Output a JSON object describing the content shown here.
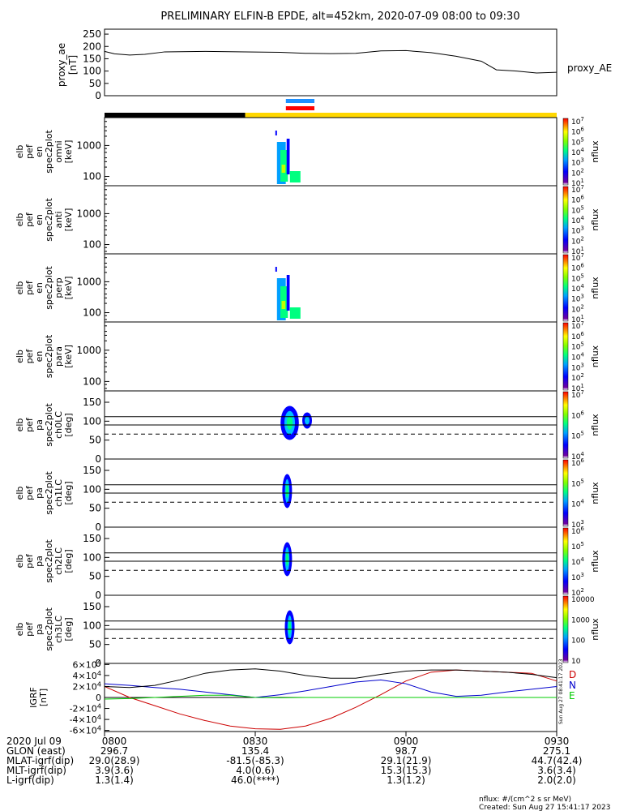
{
  "title": "PRELIMINARY ELFIN-B EPDE, alt=452km, 2020-07-09 08:00 to 09:30",
  "footer": {
    "units": "nflux: #/(cm^2 s sr MeV)",
    "created": "Created: Sun Aug 27 15:41:17 2023",
    "side_stamp": "Sun Aug 27 08:41:17 2023"
  },
  "chart_data": [
    {
      "type": "line",
      "title": "proxy_ae",
      "ylabel": "proxy_ae\n[nT]",
      "legend": "proxy_AE",
      "ylim": [
        0,
        270
      ],
      "yticks": [
        0,
        50,
        100,
        150,
        200,
        250
      ],
      "xlim": [
        0,
        90
      ],
      "x": [
        0,
        2,
        5,
        8,
        12,
        20,
        28,
        35,
        40,
        45,
        50,
        55,
        60,
        65,
        70,
        75,
        78,
        82,
        86,
        90
      ],
      "series": [
        {
          "values": [
            180,
            170,
            165,
            168,
            178,
            180,
            178,
            176,
            172,
            171,
            172,
            182,
            183,
            175,
            160,
            140,
            105,
            100,
            92,
            95
          ],
          "color": "#000000"
        }
      ]
    },
    {
      "type": "heatmap",
      "title": "elb_pef_en_spec2plot_omni",
      "ylabel": "elb pef en spec2plot omni [keV]",
      "yscale": "log",
      "yticks": [
        100,
        1000
      ],
      "colorbar": {
        "label": "nflux",
        "ticks": [
          "10^1",
          "10^2",
          "10^3",
          "10^4",
          "10^5",
          "10^6",
          "10^7"
        ]
      },
      "activity_minutes": [
        34,
        39
      ]
    },
    {
      "type": "heatmap",
      "title": "elb_pef_en_spec2plot_anti",
      "ylabel": "elb pef en spec2plot anti [keV]",
      "yscale": "log",
      "yticks": [
        100,
        1000
      ],
      "colorbar": {
        "label": "nflux",
        "ticks": [
          "10^1",
          "10^2",
          "10^3",
          "10^4",
          "10^5",
          "10^6",
          "10^7"
        ]
      },
      "activity_minutes": []
    },
    {
      "type": "heatmap",
      "title": "elb_pef_en_spec2plot_perp",
      "ylabel": "elb pef en spec2plot perp [keV]",
      "yscale": "log",
      "yticks": [
        100,
        1000
      ],
      "colorbar": {
        "label": "nflux",
        "ticks": [
          "10^1",
          "10^2",
          "10^3",
          "10^4",
          "10^5",
          "10^6",
          "10^7"
        ]
      },
      "activity_minutes": [
        34,
        39
      ]
    },
    {
      "type": "heatmap",
      "title": "elb_pef_en_spec2plot_para",
      "ylabel": "elb pef en spec2plot para [keV]",
      "yscale": "log",
      "yticks": [
        100,
        1000
      ],
      "colorbar": {
        "label": "nflux",
        "ticks": [
          "10^1",
          "10^2",
          "10^3",
          "10^4",
          "10^5",
          "10^6",
          "10^7"
        ]
      },
      "activity_minutes": []
    },
    {
      "type": "heatmap",
      "title": "elb_pef_pa_spec2plot_ch0LC",
      "ylabel": "elb pef pa spec2plot ch0LC [deg]",
      "ylim": [
        0,
        180
      ],
      "yticks": [
        0,
        50,
        100,
        150
      ],
      "colorbar": {
        "label": "nflux",
        "ticks": [
          "10^4",
          "10^5",
          "10^6",
          "10^7"
        ]
      },
      "activity_minutes": [
        35,
        40
      ]
    },
    {
      "type": "heatmap",
      "title": "elb_pef_pa_spec2plot_ch1LC",
      "ylabel": "elb pef pa spec2plot ch1LC [deg]",
      "ylim": [
        0,
        180
      ],
      "yticks": [
        0,
        50,
        100,
        150
      ],
      "colorbar": {
        "label": "nflux",
        "ticks": [
          "10^3",
          "10^4",
          "10^5",
          "10^6"
        ]
      },
      "activity_minutes": [
        36,
        38
      ]
    },
    {
      "type": "heatmap",
      "title": "elb_pef_pa_spec2plot_ch2LC",
      "ylabel": "elb pef pa spec2plot ch2LC [deg]",
      "ylim": [
        0,
        180
      ],
      "yticks": [
        0,
        50,
        100,
        150
      ],
      "colorbar": {
        "label": "nflux",
        "ticks": [
          "10^2",
          "10^3",
          "10^4",
          "10^5",
          "10^6"
        ]
      },
      "activity_minutes": [
        36,
        38
      ]
    },
    {
      "type": "heatmap",
      "title": "elb_pef_pa_spec2plot_ch3LC",
      "ylabel": "elb pef pa spec2plot ch3LC [deg]",
      "ylim": [
        0,
        180
      ],
      "yticks": [
        0,
        50,
        100,
        150
      ],
      "colorbar": {
        "label": "nflux",
        "ticks": [
          "10",
          "100",
          "1000",
          "10000"
        ]
      },
      "activity_minutes": [
        37,
        38
      ]
    },
    {
      "type": "line",
      "title": "IGRF",
      "ylabel": "IGRF [nT]",
      "ylim": [
        -62000,
        62000
      ],
      "yticks": [
        "-6×10^4",
        "-4×10^4",
        "-2×10^4",
        "0",
        "2×10^4",
        "4×10^4",
        "6×10^4"
      ],
      "xlim": [
        0,
        90
      ],
      "x": [
        0,
        5,
        10,
        15,
        20,
        25,
        30,
        35,
        40,
        45,
        50,
        55,
        60,
        65,
        70,
        75,
        80,
        85,
        90
      ],
      "series": [
        {
          "name": "D",
          "color": "#cc0000",
          "values": [
            20000,
            0,
            -15000,
            -30000,
            -42000,
            -52000,
            -57000,
            -58000,
            -52000,
            -38000,
            -18000,
            5000,
            30000,
            46000,
            50000,
            48000,
            46000,
            44000,
            30000
          ]
        },
        {
          "name": "N",
          "color": "#0000cc",
          "values": [
            25000,
            22000,
            18000,
            15000,
            10000,
            5000,
            0,
            5000,
            12000,
            20000,
            28000,
            32000,
            25000,
            10000,
            2000,
            4000,
            10000,
            15000,
            20000
          ]
        },
        {
          "name": "E",
          "color": "#00cc00",
          "values": [
            -3000,
            -2000,
            0,
            2000,
            4000,
            4000,
            0,
            -500,
            0,
            0,
            0,
            0,
            0,
            0,
            0,
            0,
            0,
            0,
            0
          ]
        },
        {
          "name": "",
          "color": "#000000",
          "values": [
            20000,
            18000,
            22000,
            32000,
            44000,
            50000,
            52000,
            48000,
            40000,
            35000,
            35000,
            42000,
            48000,
            50000,
            50000,
            48000,
            46000,
            42000,
            36000
          ]
        }
      ]
    }
  ],
  "bars": {
    "sci_zone_markers": [
      {
        "color": "#1e90ff",
        "start_min": 34,
        "end_min": 40
      },
      {
        "color": "#ff0000",
        "start_min": 34,
        "end_min": 40
      }
    ],
    "status_bar": [
      {
        "color": "#000000",
        "start_min": 0,
        "end_min": 28
      },
      {
        "color": "#ffd700",
        "start_min": 28,
        "end_min": 90
      }
    ]
  },
  "xaxis_table": {
    "row_labels": [
      "2020 Jul 09",
      "GLON (east)",
      "MLAT-igrf(dip)",
      "MLT-igrf(dip)",
      "L-igrf(dip)"
    ],
    "columns": [
      {
        "time": "0800",
        "values": [
          "296.7",
          "29.0(28.9)",
          "3.9(3.6)",
          "1.3(1.4)"
        ]
      },
      {
        "time": "0830",
        "values": [
          "135.4",
          "-81.5(-85.3)",
          "4.0(0.6)",
          "46.0(****)"
        ]
      },
      {
        "time": "0900",
        "values": [
          "98.7",
          "29.1(21.9)",
          "15.3(15.3)",
          "1.3(1.2)"
        ]
      },
      {
        "time": "0930",
        "values": [
          "275.1",
          "44.7(42.4)",
          "3.6(3.4)",
          "2.0(2.0)"
        ]
      }
    ]
  }
}
